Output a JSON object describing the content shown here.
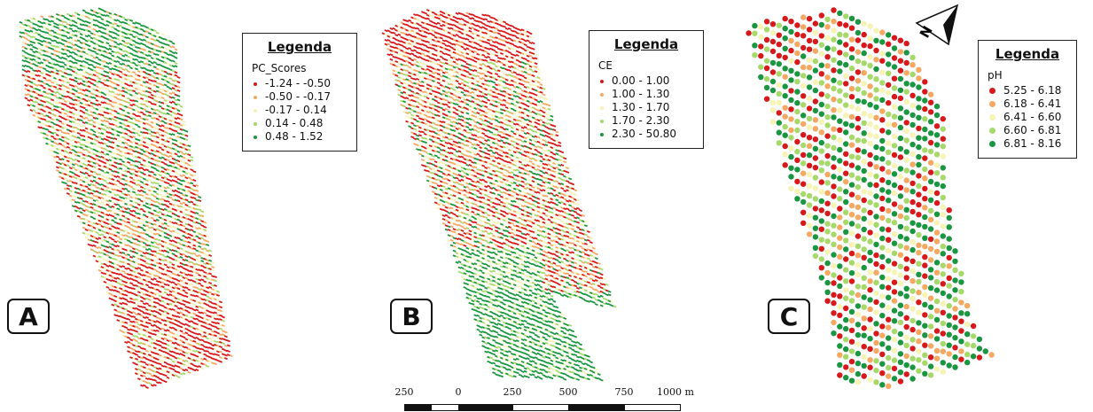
{
  "colors": {
    "c1": "#d7191c",
    "c2": "#f4a862",
    "c3": "#f6f3b5",
    "c4": "#a6d96a",
    "c5": "#1a9641"
  },
  "maps": [
    {
      "label": "A",
      "legend": {
        "title": "Legenda",
        "field": "PC_Scores",
        "classes": [
          {
            "range": "-1.24 - -0.50",
            "color": "#d7191c"
          },
          {
            "range": "-0.50 - -0.17",
            "color": "#f4a862"
          },
          {
            "range": "-0.17 - 0.14",
            "color": "#f6f3b5"
          },
          {
            "range": "0.14 - 0.48",
            "color": "#a6d96a"
          },
          {
            "range": "0.48 - 1.52",
            "color": "#1a9641"
          }
        ]
      }
    },
    {
      "label": "B",
      "legend": {
        "title": "Legenda",
        "field": "CE",
        "classes": [
          {
            "range": "0.00 - 1.00",
            "color": "#d7191c"
          },
          {
            "range": "1.00 - 1.30",
            "color": "#f4a862"
          },
          {
            "range": "1.30 - 1.70",
            "color": "#f6f3b5"
          },
          {
            "range": "1.70 - 2.30",
            "color": "#a6d96a"
          },
          {
            "range": "2.30 - 50.80",
            "color": "#1a9641"
          }
        ]
      }
    },
    {
      "label": "C",
      "legend": {
        "title": "Legenda",
        "field": "pH",
        "classes": [
          {
            "range": "5.25 - 6.18",
            "color": "#d7191c"
          },
          {
            "range": "6.18 - 6.41",
            "color": "#f4a862"
          },
          {
            "range": "6.41 - 6.60",
            "color": "#f6f3b5"
          },
          {
            "range": "6.60 - 6.81",
            "color": "#a6d96a"
          },
          {
            "range": "6.81 - 8.16",
            "color": "#1a9641"
          }
        ]
      }
    }
  ],
  "scalebar": {
    "ticks": [
      "250",
      "0",
      "250",
      "500",
      "750",
      "1000 m"
    ]
  },
  "north_arrow": {
    "label": "N",
    "icon": "north-arrow-icon"
  }
}
